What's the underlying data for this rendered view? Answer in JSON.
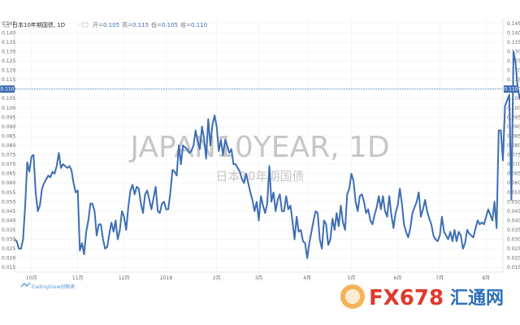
{
  "chart_data": {
    "type": "line",
    "title": "JAPAN10YEAR, 1D",
    "subtitle": "日本10年期国债",
    "legend": {
      "symbol": "日本10年期国债, 1D",
      "open_label": "开=",
      "open": "0.105",
      "high_label": "高=",
      "high": "0.115",
      "low_label": "低=",
      "low": "0.105",
      "close_label": "收=",
      "close": "0.110"
    },
    "last_value": 0.11,
    "last_value_label": "0.110",
    "ylim": [
      0.0125,
      0.1475
    ],
    "y_ticks": [
      "0.145",
      "0.140",
      "0.135",
      "0.130",
      "0.125",
      "0.120",
      "0.115",
      "0.110",
      "0.105",
      "0.100",
      "0.095",
      "0.090",
      "0.085",
      "0.080",
      "0.075",
      "0.070",
      "0.065",
      "0.060",
      "0.055",
      "0.050",
      "0.045",
      "0.040",
      "0.035",
      "0.030",
      "0.025",
      "0.020",
      "0.015"
    ],
    "x_ticks": [
      {
        "label": "10月",
        "i": 8
      },
      {
        "label": "11月",
        "i": 30
      },
      {
        "label": "12月",
        "i": 52
      },
      {
        "label": "2018",
        "i": 72
      },
      {
        "label": "2月",
        "i": 96
      },
      {
        "label": "3月",
        "i": 116
      },
      {
        "label": "4月",
        "i": 139
      },
      {
        "label": "5月",
        "i": 160
      },
      {
        "label": "6月",
        "i": 182
      },
      {
        "label": "7月",
        "i": 202
      },
      {
        "label": "8月",
        "i": 224
      }
    ],
    "xlim": [
      0,
      232
    ],
    "values": [
      0.03,
      0.029,
      0.025,
      0.025,
      0.03,
      0.048,
      0.071,
      0.066,
      0.074,
      0.075,
      0.055,
      0.045,
      0.048,
      0.057,
      0.06,
      0.062,
      0.064,
      0.063,
      0.066,
      0.065,
      0.069,
      0.076,
      0.068,
      0.07,
      0.069,
      0.068,
      0.069,
      0.067,
      0.06,
      0.055,
      0.056,
      0.024,
      0.028,
      0.022,
      0.034,
      0.04,
      0.049,
      0.049,
      0.045,
      0.032,
      0.038,
      0.038,
      0.03,
      0.025,
      0.026,
      0.033,
      0.039,
      0.034,
      0.04,
      0.03,
      0.035,
      0.045,
      0.042,
      0.035,
      0.047,
      0.056,
      0.059,
      0.054,
      0.058,
      0.057,
      0.049,
      0.044,
      0.054,
      0.056,
      0.051,
      0.046,
      0.052,
      0.058,
      0.045,
      0.044,
      0.049,
      0.05,
      0.046,
      0.046,
      0.055,
      0.067,
      0.066,
      0.064,
      0.08,
      0.07,
      0.08,
      0.079,
      0.078,
      0.076,
      0.077,
      0.08,
      0.088,
      0.082,
      0.078,
      0.09,
      0.084,
      0.073,
      0.094,
      0.08,
      0.091,
      0.096,
      0.09,
      0.077,
      0.083,
      0.075,
      0.083,
      0.08,
      0.076,
      0.078,
      0.07,
      0.07,
      0.068,
      0.066,
      0.062,
      0.06,
      0.065,
      0.06,
      0.055,
      0.051,
      0.045,
      0.05,
      0.04,
      0.053,
      0.048,
      0.044,
      0.049,
      0.069,
      0.05,
      0.055,
      0.045,
      0.051,
      0.054,
      0.045,
      0.045,
      0.053,
      0.046,
      0.048,
      0.04,
      0.03,
      0.042,
      0.034,
      0.035,
      0.029,
      0.028,
      0.02,
      0.028,
      0.034,
      0.04,
      0.045,
      0.044,
      0.03,
      0.025,
      0.04,
      0.038,
      0.027,
      0.03,
      0.041,
      0.035,
      0.044,
      0.037,
      0.048,
      0.039,
      0.035,
      0.054,
      0.057,
      0.065,
      0.061,
      0.05,
      0.045,
      0.053,
      0.054,
      0.05,
      0.044,
      0.046,
      0.04,
      0.038,
      0.043,
      0.047,
      0.053,
      0.046,
      0.053,
      0.045,
      0.042,
      0.053,
      0.043,
      0.036,
      0.044,
      0.048,
      0.057,
      0.049,
      0.038,
      0.034,
      0.031,
      0.036,
      0.044,
      0.047,
      0.05,
      0.055,
      0.042,
      0.046,
      0.051,
      0.045,
      0.041,
      0.038,
      0.032,
      0.03,
      0.029,
      0.032,
      0.042,
      0.034,
      0.032,
      0.03,
      0.034,
      0.029,
      0.035,
      0.029,
      0.034,
      0.032,
      0.025,
      0.028,
      0.035,
      0.033,
      0.032,
      0.031,
      0.036,
      0.04,
      0.038,
      0.039,
      0.038,
      0.042,
      0.046,
      0.043,
      0.04,
      0.05,
      0.036,
      0.088,
      0.088,
      0.072,
      0.101,
      0.104,
      0.107,
      0.051,
      0.13,
      0.124,
      0.111,
      0.105,
      0.11
    ]
  },
  "watermark": {
    "tradingview": "TradingView创图表"
  },
  "brand": {
    "fx": "FX678",
    "cn": "汇通网"
  },
  "colors": {
    "line": "#3d6eb4",
    "last_line": "#3d6eb4",
    "label_bg": "#3d6eb4",
    "grid": "#eef0f3",
    "brand_red": "#e03a2c",
    "brand_blue": "#2d6fb8"
  }
}
